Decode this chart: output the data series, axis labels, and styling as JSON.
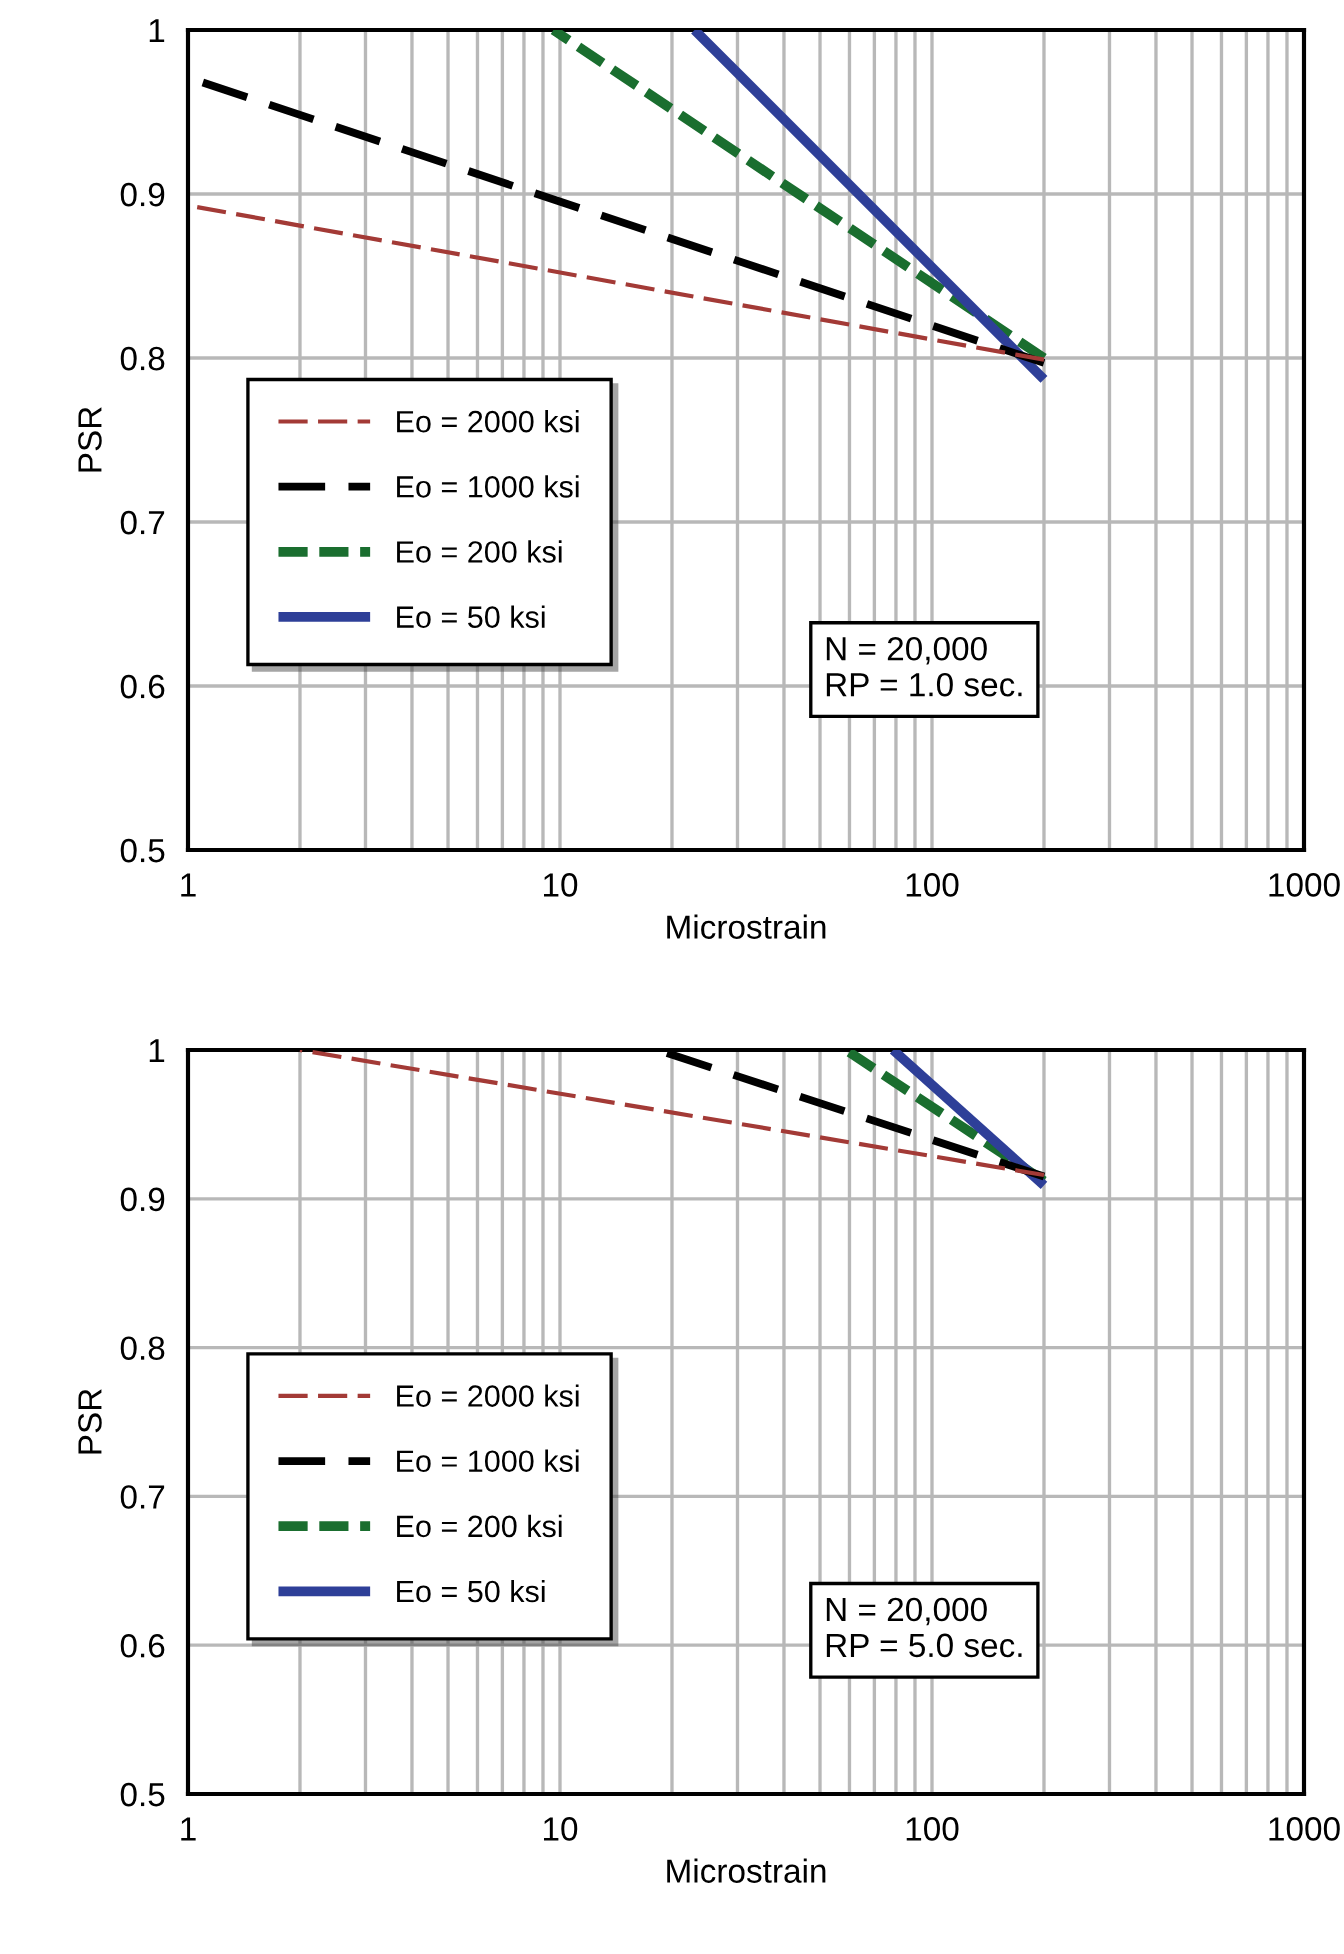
{
  "chart_data": [
    {
      "type": "line",
      "xlabel": "Microstrain",
      "ylabel": "PSR",
      "log": "x",
      "xlim": [
        1,
        1000
      ],
      "ylim": [
        0.5,
        1
      ],
      "xticks": [
        1,
        10,
        100,
        1000
      ],
      "yticks": [
        0.5,
        0.6,
        0.7,
        0.8,
        0.9,
        1
      ],
      "grid": true,
      "legend": "left",
      "annotations": [
        "N = 20,000\nRP = 1.0 sec."
      ],
      "series": [
        {
          "name": "Eo = 2000 ksi",
          "color": "#a33a36",
          "line_style": "dashed",
          "x": [
            1,
            200
          ],
          "values": [
            0.893,
            0.799
          ]
        },
        {
          "name": "Eo = 1000 ksi",
          "color": "#000000",
          "line_style": "dashed",
          "x": [
            1,
            200
          ],
          "values": [
            0.971,
            0.797
          ]
        },
        {
          "name": "Eo = 200 ksi",
          "color": "#1a6e2f",
          "line_style": "dashed",
          "x": [
            9.6,
            200
          ],
          "values": [
            1,
            0.8
          ]
        },
        {
          "name": "Eo = 50 ksi",
          "color": "#2e3f98",
          "line_style": "solid",
          "x": [
            23,
            200
          ],
          "values": [
            1,
            0.787
          ]
        }
      ]
    },
    {
      "type": "line",
      "xlabel": "Microstrain",
      "ylabel": "PSR",
      "log": "x",
      "xlim": [
        1,
        1000
      ],
      "ylim": [
        0.5,
        1
      ],
      "xticks": [
        1,
        10,
        100,
        1000
      ],
      "yticks": [
        0.5,
        0.6,
        0.7,
        0.8,
        0.9,
        1
      ],
      "grid": true,
      "legend": "left",
      "annotations": [
        "N = 20,000\nRP = 5.0 sec."
      ],
      "series": [
        {
          "name": "Eo = 2000 ksi",
          "color": "#a33a36",
          "line_style": "dashed",
          "x": [
            2,
            200
          ],
          "values": [
            1,
            0.916
          ]
        },
        {
          "name": "Eo = 1000 ksi",
          "color": "#000000",
          "line_style": "dashed",
          "x": [
            18.3,
            200
          ],
          "values": [
            1,
            0.915
          ]
        },
        {
          "name": "Eo = 200 ksi",
          "color": "#1a6e2f",
          "line_style": "dashed",
          "x": [
            58.7,
            200
          ],
          "values": [
            1,
            0.912
          ]
        },
        {
          "name": "Eo = 50 ksi",
          "color": "#2e3f98",
          "line_style": "solid",
          "x": [
            78.6,
            200
          ],
          "values": [
            1,
            0.909
          ]
        }
      ]
    }
  ]
}
